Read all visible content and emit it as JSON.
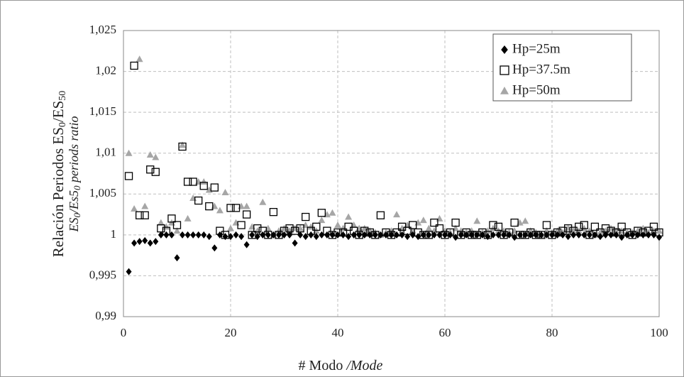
{
  "chart_data": {
    "type": "scatter",
    "xlabel": [
      "# Modo ",
      "/Mode"
    ],
    "ylabel": [
      "Relación Periodos ES",
      "0",
      "/ES",
      "50"
    ],
    "ylabel2": [
      "ES",
      "0",
      "/Es5",
      "0",
      " periods ratio"
    ],
    "x": [
      1,
      2,
      3,
      4,
      5,
      6,
      7,
      8,
      9,
      10,
      11,
      12,
      13,
      14,
      15,
      16,
      17,
      18,
      19,
      20,
      21,
      22,
      23,
      24,
      25,
      26,
      27,
      28,
      29,
      30,
      31,
      32,
      33,
      34,
      35,
      36,
      37,
      38,
      39,
      40,
      41,
      42,
      43,
      44,
      45,
      46,
      47,
      48,
      49,
      50,
      51,
      52,
      53,
      54,
      55,
      56,
      57,
      58,
      59,
      60,
      61,
      62,
      63,
      64,
      65,
      66,
      67,
      68,
      69,
      70,
      71,
      72,
      73,
      74,
      75,
      76,
      77,
      78,
      79,
      80,
      81,
      82,
      83,
      84,
      85,
      86,
      87,
      88,
      89,
      90,
      91,
      92,
      93,
      94,
      95,
      96,
      97,
      98,
      99,
      100
    ],
    "series": [
      {
        "name": "Hp=25m",
        "color": "#000000",
        "marker": "diamond",
        "values": [
          0.9955,
          0.999,
          0.9992,
          0.9993,
          0.999,
          0.9992,
          1,
          1,
          1,
          0.9972,
          1,
          1,
          1,
          1,
          1,
          0.9998,
          0.9984,
          1,
          0.9998,
          0.9998,
          1,
          0.9998,
          0.9988,
          1,
          0.9998,
          1,
          1,
          1,
          1,
          1,
          1,
          0.999,
          1,
          0.9998,
          1,
          0.9998,
          1,
          1,
          1,
          1,
          1,
          0.9998,
          1,
          1,
          1,
          1,
          1,
          1,
          1,
          1,
          1,
          1,
          0.9998,
          1,
          0.9998,
          1,
          1,
          1,
          1,
          1,
          1,
          0.9997,
          1,
          1,
          1,
          1,
          1,
          0.9998,
          1,
          1,
          1,
          1,
          0.9997,
          1,
          1,
          1,
          1,
          1,
          1,
          1,
          1,
          1,
          0.9998,
          1,
          1,
          1,
          1,
          1,
          0.9998,
          1,
          1,
          1,
          0.9997,
          1,
          1,
          1,
          1,
          1,
          1,
          0.9997
        ]
      },
      {
        "name": "Hp=37.5m",
        "color": "#000000",
        "marker": "square-open",
        "values": [
          1.0072,
          1.0207,
          1.0024,
          1.0024,
          1.008,
          1.0077,
          1.0008,
          1.0005,
          1.002,
          1.0012,
          1.0108,
          1.0065,
          1.0065,
          1.0042,
          1.006,
          1.0035,
          1.0058,
          1.0005,
          1,
          1.0033,
          1.0033,
          1.0012,
          1.0025,
          1,
          1.0008,
          1.0005,
          1,
          1.0028,
          1,
          1.0005,
          1.0008,
          1.0005,
          1.0008,
          1.0022,
          1.0005,
          1.001,
          1.0027,
          1.0005,
          1,
          1.0003,
          1.0003,
          1.001,
          1.0005,
          1,
          1.0005,
          1.0003,
          1,
          1.0024,
          1.0003,
          1,
          1.0003,
          1.001,
          1.0005,
          1.0012,
          1.0003,
          1,
          1,
          1.0015,
          1.0008,
          1,
          1.0003,
          1.0015,
          1,
          1.0003,
          1,
          1,
          1.0003,
          1,
          1.0012,
          1.001,
          1,
          1.0003,
          1.0015,
          1,
          1,
          1.0003,
          1,
          1,
          1.0012,
          1,
          1.0003,
          1.0005,
          1.0008,
          1.0005,
          1.001,
          1.0012,
          1,
          1.001,
          1.0003,
          1.0008,
          1.0005,
          1.0003,
          1.001,
          1.0003,
          1,
          1.0005,
          1.0003,
          1.0005,
          1.001,
          1.0003
        ]
      },
      {
        "name": "Hp=50m",
        "color": "#a6a6a6",
        "marker": "triangle",
        "values": [
          1.01,
          1.0032,
          1.0215,
          1.0035,
          1.0098,
          1.0095,
          1.0015,
          1.001,
          1.0015,
          1.0005,
          1.011,
          1.002,
          1.0045,
          1.0065,
          1.0065,
          1.0055,
          1.0035,
          1.003,
          1.0052,
          1.0008,
          1.0015,
          1.0035,
          1.0035,
          1.001,
          1.0005,
          1.004,
          1.0008,
          1,
          1.0005,
          1.0008,
          1.0005,
          1.0008,
          1.0008,
          1.0012,
          1.001,
          1.0005,
          1.0018,
          1.0025,
          1.0027,
          1.0012,
          1.0008,
          1.0022,
          1.0012,
          1.0008,
          1.0008,
          1.0005,
          1.0003,
          1,
          1.0003,
          1.0005,
          1.0025,
          1.0008,
          1.0012,
          1.0005,
          1.0015,
          1.0018,
          1.0008,
          1.0005,
          1.002,
          1.0005,
          1.0003,
          1.0008,
          1.0005,
          1.0003,
          1.0005,
          1.0017,
          1.0003,
          1.0005,
          1.0008,
          1.0005,
          1.0005,
          1.0003,
          1.0005,
          1.0015,
          1.0017,
          1.0005,
          1.0003,
          1,
          1.0005,
          1.0003,
          1.0005,
          1.0003,
          1.0008,
          1.0005,
          1.0005,
          1.0008,
          1.0005,
          1,
          1.0003,
          1.0005,
          1.0008,
          1.0005,
          1.0005,
          1.0003,
          1.0003,
          1.0005,
          1.0008,
          1.0003,
          1.0005,
          1.0005
        ]
      }
    ],
    "xlim": [
      0,
      100
    ],
    "xticks": [
      0,
      20,
      40,
      60,
      80,
      100
    ],
    "ylim": [
      0.99,
      1.025
    ],
    "yticks": [
      {
        "value": 0.99,
        "label": "0,99"
      },
      {
        "value": 0.995,
        "label": "0,995"
      },
      1,
      {
        "value": 1.005,
        "label": "1,005"
      },
      {
        "value": 1.01,
        "label": "1,01"
      },
      {
        "value": 1.015,
        "label": "1,015"
      },
      {
        "value": 1.02,
        "label": "1,02"
      },
      {
        "value": 1.025,
        "label": "1,025"
      }
    ],
    "grid": true,
    "legend": "upper right"
  }
}
